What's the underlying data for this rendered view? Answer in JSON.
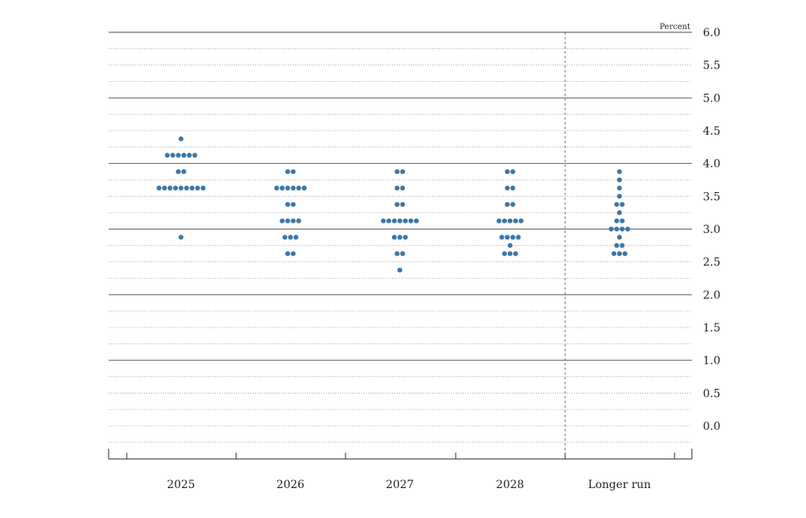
{
  "chart_data": {
    "type": "scatter",
    "subtype": "dot-plot",
    "title": "",
    "unit_label": "Percent",
    "xlabel": "",
    "ylabel": "",
    "ylim": [
      -0.25,
      6.0
    ],
    "yticks": [
      "0.0",
      "0.5",
      "1.0",
      "1.5",
      "2.0",
      "2.5",
      "3.0",
      "3.5",
      "4.0",
      "4.5",
      "5.0",
      "5.5",
      "6.0"
    ],
    "categories": [
      "2025",
      "2026",
      "2027",
      "2028",
      "Longer run"
    ],
    "grid": true,
    "series": [
      {
        "category": "2025",
        "values": [
          {
            "y": 4.375,
            "count": 1
          },
          {
            "y": 4.125,
            "count": 6
          },
          {
            "y": 3.875,
            "count": 2
          },
          {
            "y": 3.625,
            "count": 9
          },
          {
            "y": 2.875,
            "count": 1
          }
        ]
      },
      {
        "category": "2026",
        "values": [
          {
            "y": 3.875,
            "count": 2
          },
          {
            "y": 3.625,
            "count": 6
          },
          {
            "y": 3.375,
            "count": 2
          },
          {
            "y": 3.125,
            "count": 4
          },
          {
            "y": 2.875,
            "count": 3
          },
          {
            "y": 2.625,
            "count": 2
          }
        ]
      },
      {
        "category": "2027",
        "values": [
          {
            "y": 3.875,
            "count": 2
          },
          {
            "y": 3.625,
            "count": 2
          },
          {
            "y": 3.375,
            "count": 2
          },
          {
            "y": 3.125,
            "count": 7
          },
          {
            "y": 2.875,
            "count": 3
          },
          {
            "y": 2.625,
            "count": 2
          },
          {
            "y": 2.375,
            "count": 1
          }
        ]
      },
      {
        "category": "2028",
        "values": [
          {
            "y": 3.875,
            "count": 2
          },
          {
            "y": 3.625,
            "count": 2
          },
          {
            "y": 3.375,
            "count": 2
          },
          {
            "y": 3.125,
            "count": 5
          },
          {
            "y": 2.875,
            "count": 4
          },
          {
            "y": 2.75,
            "count": 1
          },
          {
            "y": 2.625,
            "count": 3
          }
        ]
      },
      {
        "category": "Longer run",
        "values": [
          {
            "y": 3.875,
            "count": 1
          },
          {
            "y": 3.75,
            "count": 1
          },
          {
            "y": 3.625,
            "count": 1
          },
          {
            "y": 3.5,
            "count": 1
          },
          {
            "y": 3.375,
            "count": 2
          },
          {
            "y": 3.25,
            "count": 1
          },
          {
            "y": 3.125,
            "count": 2
          },
          {
            "y": 3.0,
            "count": 4
          },
          {
            "y": 2.875,
            "count": 1
          },
          {
            "y": 2.75,
            "count": 2
          },
          {
            "y": 2.625,
            "count": 3
          }
        ]
      }
    ],
    "colors": {
      "dot": "#3b78a8",
      "grid_major": "#444444",
      "grid_minor": "#9a9a9a",
      "axis": "#222222"
    }
  }
}
